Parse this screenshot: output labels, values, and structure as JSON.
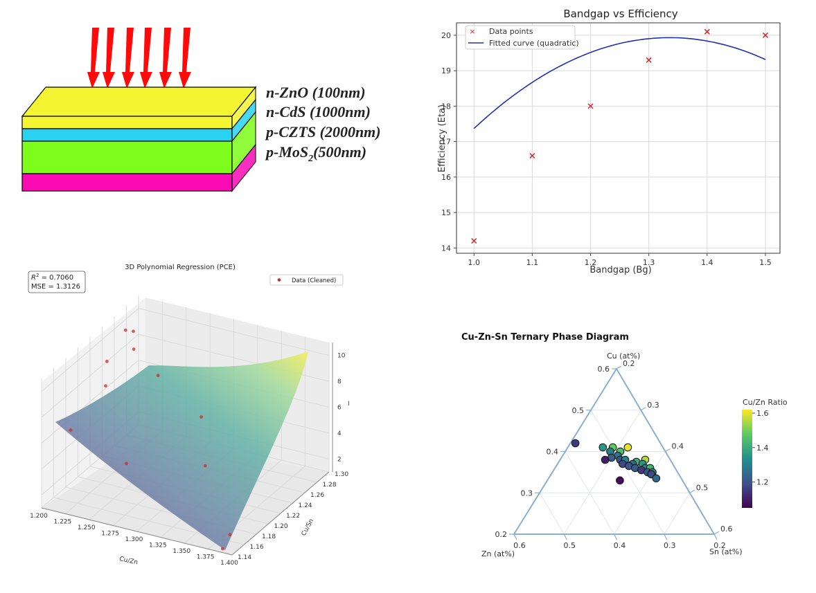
{
  "colors": {
    "arrow": "#ff0a0a",
    "layer_zno": "#f5f531",
    "layer_cds": "#2ad2f2",
    "layer_czts": "#7efc1b",
    "layer_mos2": "#fb0bb4",
    "fit_line": "#1f2fb5",
    "point_marker": "#d62728",
    "triangle": "#8aaed2"
  },
  "device": {
    "layers": [
      {
        "name": "n-ZnO (100nm)",
        "color": "#f5f531"
      },
      {
        "name": "n-CdS (1000nm)",
        "color": "#2ad2f2"
      },
      {
        "name": "p-CZTS (2000nm)",
        "color": "#7efc1b"
      },
      {
        "main": "p-MoS",
        "sub": "2",
        "rest": "(500nm)",
        "color": "#fb0bb4"
      }
    ],
    "arrow_count": 6
  },
  "fit_chart": {
    "title": "Bandgap vs Efficiency",
    "xlabel": "Bandgap (Bg)",
    "ylabel": "Efficiency (Eta)",
    "legend": [
      "Data points",
      "Fitted curve (quadratic)"
    ],
    "xticks": [
      "1.0",
      "1.1",
      "1.2",
      "1.3",
      "1.4",
      "1.5"
    ],
    "yticks": [
      "14",
      "15",
      "16",
      "17",
      "18",
      "19",
      "20"
    ]
  },
  "reg3d": {
    "title": "3D Polynomial Regression (PCE)",
    "r2_label": "R",
    "r2_sup": "2",
    "r2_value": " = 0.7060",
    "mse": "MSE = 1.3126",
    "legend": "Data (Cleaned)",
    "xlabel": "Cu/Zn",
    "ylabel": "Cu/Sn",
    "zlabel": "I",
    "xticks": [
      "1.200",
      "1.225",
      "1.250",
      "1.275",
      "1.300",
      "1.325",
      "1.350",
      "1.375",
      "1.400"
    ],
    "yticks": [
      "1.14",
      "1.16",
      "1.18",
      "1.20",
      "1.22",
      "1.24",
      "1.26",
      "1.28",
      "1.30"
    ],
    "zticks": [
      "2",
      "4",
      "6",
      "8",
      "10"
    ]
  },
  "ternary": {
    "title": "Cu-Zn-Sn Ternary Phase Diagram",
    "top_label": "Cu (at%)",
    "left_label": "Zn (at%)",
    "right_label": "Sn (at%)",
    "right_ticks": [
      "0.2",
      "0.3",
      "0.4",
      "0.5",
      "0.6"
    ],
    "left_ticks": [
      "0.6",
      "0.5",
      "0.4",
      "0.3",
      "0.2"
    ],
    "bottom_ticks": [
      "0.6",
      "0.5",
      "0.4",
      "0.3",
      "0.2"
    ],
    "colorbar_label": "Cu/Zn Ratio",
    "colorbar_ticks": [
      "1.6",
      "1.4",
      "1.2"
    ]
  },
  "chart_data": [
    {
      "type": "scatter",
      "title": "Bandgap vs Efficiency",
      "xlabel": "Bandgap (Bg)",
      "ylabel": "Efficiency (Eta)",
      "xlim": [
        0.97,
        1.525
      ],
      "ylim": [
        13.85,
        20.35
      ],
      "grid": true,
      "legend_position": "top-left",
      "series": [
        {
          "name": "Data points",
          "marker": "x",
          "color": "#d62728",
          "x": [
            1.0,
            1.1,
            1.2,
            1.3,
            1.4,
            1.5
          ],
          "y": [
            14.2,
            16.6,
            18.0,
            19.3,
            20.1,
            20.0
          ]
        },
        {
          "name": "Fitted curve (quadratic)",
          "type": "line",
          "color": "#1f2fb5",
          "coefficients": [
            -22.78,
            60.84,
            -20.69
          ]
        }
      ]
    },
    {
      "type": "scatter",
      "title": "3D Polynomial Regression (PCE)",
      "xlabel": "Cu/Zn",
      "ylabel": "Cu/Sn",
      "xlim": [
        1.2,
        1.4
      ],
      "ylim": [
        1.14,
        1.3
      ],
      "zlim": [
        1,
        11
      ],
      "series": [
        {
          "name": "Data (Cleaned)",
          "color": "#d62728",
          "points": [
            {
              "x": 1.215,
              "y": 1.255,
              "z": 10.4
            },
            {
              "x": 1.22,
              "y": 1.26,
              "z": 10.2
            },
            {
              "x": 1.23,
              "y": 1.245,
              "z": 9.6
            },
            {
              "x": 1.205,
              "y": 1.24,
              "z": 8.4
            },
            {
              "x": 1.265,
              "y": 1.23,
              "z": 8.8
            },
            {
              "x": 1.21,
              "y": 1.23,
              "z": 7.0
            },
            {
              "x": 1.205,
              "y": 1.18,
              "z": 5.5
            },
            {
              "x": 1.32,
              "y": 1.215,
              "z": 7.2
            },
            {
              "x": 1.27,
              "y": 1.17,
              "z": 4.5
            },
            {
              "x": 1.34,
              "y": 1.19,
              "z": 4.8
            },
            {
              "x": 1.385,
              "y": 1.16,
              "z": 1.5
            },
            {
              "x": 1.39,
              "y": 1.14,
              "z": 1.3
            }
          ]
        }
      ]
    },
    {
      "type": "scatter",
      "title": "Cu-Zn-Sn Ternary Phase Diagram",
      "axes": [
        "Cu (at%)",
        "Zn (at%)",
        "Sn (at%)"
      ],
      "colorbar": {
        "label": "Cu/Zn Ratio",
        "range": [
          1.05,
          1.62
        ]
      },
      "points": [
        {
          "cu": 0.42,
          "zn": 0.37,
          "sn": 0.21,
          "ratio": 1.15
        },
        {
          "cu": 0.41,
          "zn": 0.32,
          "sn": 0.27,
          "ratio": 1.35
        },
        {
          "cu": 0.41,
          "zn": 0.3,
          "sn": 0.29,
          "ratio": 1.48
        },
        {
          "cu": 0.4,
          "zn": 0.31,
          "sn": 0.29,
          "ratio": 1.3
        },
        {
          "cu": 0.41,
          "zn": 0.27,
          "sn": 0.32,
          "ratio": 1.6
        },
        {
          "cu": 0.4,
          "zn": 0.29,
          "sn": 0.31,
          "ratio": 1.45
        },
        {
          "cu": 0.39,
          "zn": 0.3,
          "sn": 0.31,
          "ratio": 1.28
        },
        {
          "cu": 0.385,
          "zn": 0.315,
          "sn": 0.3,
          "ratio": 1.22
        },
        {
          "cu": 0.38,
          "zn": 0.33,
          "sn": 0.29,
          "ratio": 1.1
        },
        {
          "cu": 0.38,
          "zn": 0.3,
          "sn": 0.32,
          "ratio": 1.2
        },
        {
          "cu": 0.38,
          "zn": 0.29,
          "sn": 0.33,
          "ratio": 1.3
        },
        {
          "cu": 0.375,
          "zn": 0.27,
          "sn": 0.355,
          "ratio": 1.4
        },
        {
          "cu": 0.38,
          "zn": 0.25,
          "sn": 0.37,
          "ratio": 1.55
        },
        {
          "cu": 0.37,
          "zn": 0.3,
          "sn": 0.33,
          "ratio": 1.18
        },
        {
          "cu": 0.37,
          "zn": 0.28,
          "sn": 0.35,
          "ratio": 1.25
        },
        {
          "cu": 0.37,
          "zn": 0.26,
          "sn": 0.37,
          "ratio": 1.35
        },
        {
          "cu": 0.365,
          "zn": 0.29,
          "sn": 0.345,
          "ratio": 1.2
        },
        {
          "cu": 0.36,
          "zn": 0.28,
          "sn": 0.36,
          "ratio": 1.22
        },
        {
          "cu": 0.36,
          "zn": 0.26,
          "sn": 0.38,
          "ratio": 1.3
        },
        {
          "cu": 0.36,
          "zn": 0.25,
          "sn": 0.39,
          "ratio": 1.42
        },
        {
          "cu": 0.355,
          "zn": 0.27,
          "sn": 0.375,
          "ratio": 1.15
        },
        {
          "cu": 0.35,
          "zn": 0.26,
          "sn": 0.39,
          "ratio": 1.2
        },
        {
          "cu": 0.35,
          "zn": 0.25,
          "sn": 0.4,
          "ratio": 1.28
        },
        {
          "cu": 0.345,
          "zn": 0.255,
          "sn": 0.4,
          "ratio": 1.18
        },
        {
          "cu": 0.335,
          "zn": 0.25,
          "sn": 0.415,
          "ratio": 1.25
        },
        {
          "cu": 0.33,
          "zn": 0.325,
          "sn": 0.345,
          "ratio": 1.07
        }
      ]
    }
  ]
}
